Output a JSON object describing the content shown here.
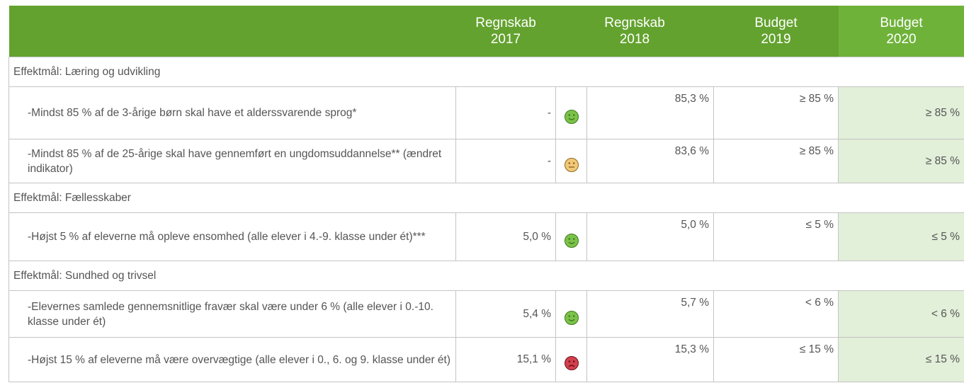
{
  "header": {
    "columns": [
      [
        "Regnskab",
        "2017"
      ],
      [
        "Regnskab",
        "2018"
      ],
      [
        "Budget",
        "2019"
      ],
      [
        "Budget",
        "2020"
      ]
    ]
  },
  "sections": [
    {
      "title": "Effektmål: Læring og udvikling",
      "rows": [
        {
          "label": "-Mindst 85 % af de 3-årige børn skal have et alderssvarende sprog*",
          "values": [
            "-",
            "85,3 %",
            "≥ 85 %",
            "≥ 85 %"
          ]
        },
        {
          "label": "-Mindst 85 % af de 25-årige skal have gennemført en ungdomsuddannelse** (ændret indikator)",
          "values": [
            "-",
            "83,6 %",
            "≥ 85 %",
            "≥ 85 %"
          ]
        }
      ]
    },
    {
      "title": "Effektmål: Fællesskaber",
      "rows": [
        {
          "label": "-Højst 5 % af eleverne må opleve ensomhed (alle elever i 4.-9. klasse under ét)***",
          "values": [
            "5,0 %",
            "5,0 %",
            "≤ 5 %",
            "≤ 5 %"
          ]
        }
      ]
    },
    {
      "title": "Effektmål: Sundhed og trivsel",
      "rows": [
        {
          "label": "-Elevernes samlede gennemsnitlige fravær skal være under 6 % (alle elever i 0.-10. klasse under ét)",
          "values": [
            "5,4 %",
            "5,7 %",
            "< 6 %",
            "< 6 %"
          ]
        },
        {
          "label": "-Højst 15 % af eleverne må være overvægtige (alle elever i 0., 6. og 9. klasse under ét)",
          "values": [
            "15,1 %",
            "15,3 %",
            "≤ 15 %",
            "≤ 15 %"
          ]
        }
      ]
    }
  ]
}
